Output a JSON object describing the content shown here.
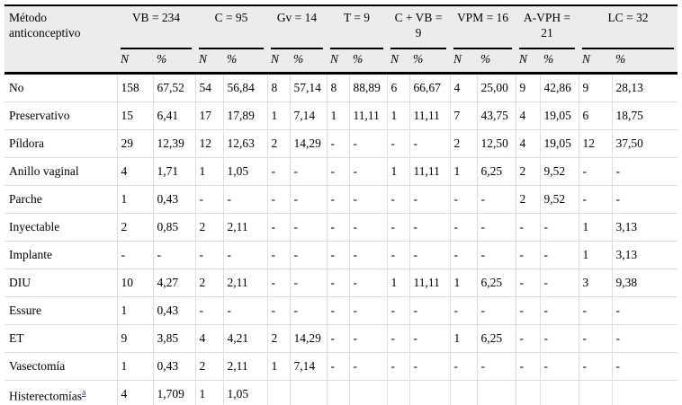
{
  "table": {
    "method_header": "Método\nanticonceptivo",
    "sub_headers": {
      "n": "N",
      "pct": "%"
    },
    "groups": [
      {
        "label": "VB = 234"
      },
      {
        "label": "C = 95"
      },
      {
        "label": "Gv = 14"
      },
      {
        "label": "T = 9"
      },
      {
        "label": "C + VB =\n9"
      },
      {
        "label": "VPM = 16"
      },
      {
        "label": "A-VPH =\n21"
      },
      {
        "label": "LC = 32"
      }
    ],
    "rows": [
      {
        "method": "No",
        "values": [
          "158",
          "67,52",
          "54",
          "56,84",
          "8",
          "57,14",
          "8",
          "88,89",
          "6",
          "66,67",
          "4",
          "25,00",
          "9",
          "42,86",
          "9",
          "28,13"
        ]
      },
      {
        "method": "Preservativo",
        "values": [
          "15",
          "6,41",
          "17",
          "17,89",
          "1",
          "7,14",
          "1",
          "11,11",
          "1",
          "11,11",
          "7",
          "43,75",
          "4",
          "19,05",
          "6",
          "18,75"
        ]
      },
      {
        "method": "Píldora",
        "values": [
          "29",
          "12,39",
          "12",
          "12,63",
          "2",
          "14,29",
          "-",
          "-",
          "-",
          "-",
          "2",
          "12,50",
          "4",
          "19,05",
          "12",
          "37,50"
        ]
      },
      {
        "method": "Anillo vaginal",
        "values": [
          "4",
          "1,71",
          "1",
          "1,05",
          "-",
          "-",
          "-",
          "-",
          "1",
          "11,11",
          "1",
          "6,25",
          "2",
          "9,52",
          "-",
          "-"
        ]
      },
      {
        "method": "Parche",
        "values": [
          "1",
          "0,43",
          "-",
          "-",
          "-",
          "-",
          "-",
          "-",
          "-",
          "-",
          "-",
          "-",
          "2",
          "9,52",
          "-",
          "-"
        ]
      },
      {
        "method": "Inyectable",
        "values": [
          "2",
          "0,85",
          "2",
          "2,11",
          "-",
          "-",
          "-",
          "-",
          "-",
          "-",
          "-",
          "-",
          "-",
          "-",
          "1",
          "3,13"
        ]
      },
      {
        "method": "Implante",
        "values": [
          "-",
          "-",
          "-",
          "-",
          "-",
          "-",
          "-",
          "-",
          "-",
          "-",
          "-",
          "-",
          "-",
          "-",
          "1",
          "3,13"
        ]
      },
      {
        "method": "DIU",
        "values": [
          "10",
          "4,27",
          "2",
          "2,11",
          "-",
          "-",
          "-",
          "-",
          "1",
          "11,11",
          "1",
          "6,25",
          "-",
          "-",
          "3",
          "9,38"
        ]
      },
      {
        "method": "Essure",
        "values": [
          "1",
          "0,43",
          "-",
          "-",
          "-",
          "-",
          "-",
          "-",
          "-",
          "-",
          "-",
          "-",
          "-",
          "-",
          "-",
          "-"
        ]
      },
      {
        "method": "ET",
        "values": [
          "9",
          "3,85",
          "4",
          "4,21",
          "2",
          "14,29",
          "-",
          "-",
          "-",
          "-",
          "1",
          "6,25",
          "-",
          "-",
          "-",
          "-"
        ]
      },
      {
        "method": "Vasectomía",
        "values": [
          "1",
          "0,43",
          "2",
          "2,11",
          "1",
          "7,14",
          "-",
          "-",
          "-",
          "-",
          "-",
          "-",
          "-",
          "-",
          "-",
          "-"
        ]
      },
      {
        "method": "Histerectomías",
        "footnote": "a",
        "values": [
          "4",
          "1,709",
          "1",
          "1,05",
          "",
          "",
          "",
          "",
          "",
          "",
          "",
          "",
          "",
          "",
          "",
          ""
        ]
      }
    ],
    "colors": {
      "header_bg": "#ececec",
      "rule": "#000000",
      "grid": "#dddddd",
      "link": "#3333cc"
    }
  }
}
